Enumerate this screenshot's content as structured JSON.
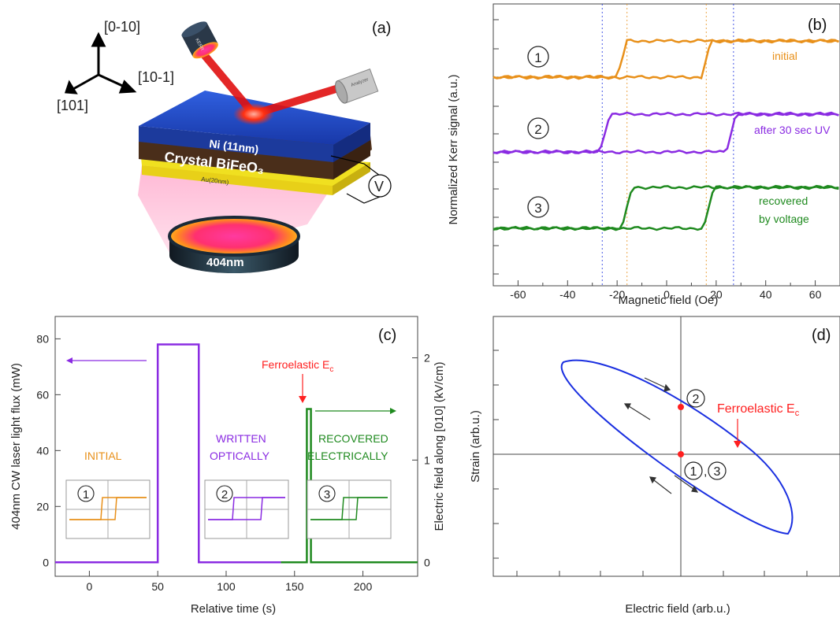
{
  "panels": {
    "a": {
      "letter": "(a)",
      "axes": {
        "up": "[0-10]",
        "right": "[10-1]",
        "left": "[101]"
      },
      "layer_ni": "Ni (11nm)",
      "layer_bfo": "Crystal BiFeO₃",
      "layer_au": "Au(20nm)",
      "laser": "404nm",
      "voltage": "V",
      "kerr_source": "KERR",
      "analyzer": "Analyzer"
    },
    "b": {
      "letter": "(b)",
      "xlabel": "Magnetic field (Oe)",
      "ylabel": "Normalized Kerr signal (a.u.)",
      "xticks": [
        "-60",
        "-40",
        "-20",
        "0",
        "20",
        "40",
        "60"
      ],
      "markers": [
        "①",
        "②",
        "③"
      ],
      "labels": [
        "initial",
        "after 30 sec UV",
        "recovered",
        "by voltage"
      ]
    },
    "c": {
      "letter": "(c)",
      "xlabel": "Relative time (s)",
      "ylabel_left": "404nm CW laser light flux (mW)",
      "ylabel_right": "Electric field along [010] (kV/cm)",
      "xticks": [
        "0",
        "50",
        "100",
        "150",
        "200"
      ],
      "yticks_left": [
        "0",
        "20",
        "40",
        "60",
        "80"
      ],
      "yticks_right": [
        "0",
        "1",
        "2"
      ],
      "ferro_label": "Ferroelastic E",
      "ferro_sub": "c",
      "state_initial": "INITIAL",
      "state_written_1": "WRITTEN",
      "state_written_2": "OPTICALLY",
      "state_recovered_1": "RECOVERED",
      "state_recovered_2": "ELECTRICALLY",
      "inset_markers": [
        "①",
        "②",
        "③"
      ]
    },
    "d": {
      "letter": "(d)",
      "xlabel": "Electric field (arb.u.)",
      "ylabel": "Strain (arb.u.)",
      "ferro_label": "Ferroelastic E",
      "ferro_sub": "c",
      "point_2": "②",
      "point_13": "①,③"
    }
  },
  "colors": {
    "orange": "#e8901a",
    "purple": "#8a2be2",
    "green": "#1f8a1f",
    "blue": "#1a2fe0",
    "red": "#ff2020"
  },
  "chart_data": [
    {
      "panel": "b",
      "type": "line",
      "xlabel": "Magnetic field (Oe)",
      "ylabel": "Normalized Kerr signal (a.u.)",
      "xlim": [
        -70,
        70
      ],
      "series": [
        {
          "name": "initial",
          "coercive_fields": [
            -18,
            16
          ]
        },
        {
          "name": "after 30 sec UV",
          "coercive_fields": [
            -25,
            26
          ]
        },
        {
          "name": "recovered by voltage",
          "coercive_fields": [
            -16,
            17
          ]
        }
      ]
    },
    {
      "panel": "c",
      "type": "line",
      "xlabel": "Relative time (s)",
      "ylabel": "404nm CW laser light flux (mW)",
      "xlim": [
        -25,
        240
      ],
      "ylim": [
        -5,
        88
      ],
      "series": [
        {
          "name": "laser flux",
          "x": [
            -25,
            50,
            50,
            80,
            80,
            140
          ],
          "y": [
            0,
            0,
            78,
            78,
            0,
            0
          ]
        },
        {
          "name": "electric field",
          "x": [
            140,
            159,
            159,
            162,
            162,
            240
          ],
          "y_kVcm": [
            0,
            0,
            1.5,
            1.5,
            0,
            0
          ]
        }
      ]
    },
    {
      "panel": "d",
      "type": "line",
      "xlabel": "Electric field (arb.u.)",
      "ylabel": "Strain (arb.u.)",
      "series": [
        {
          "name": "strain-field hysteresis loop"
        }
      ]
    }
  ]
}
